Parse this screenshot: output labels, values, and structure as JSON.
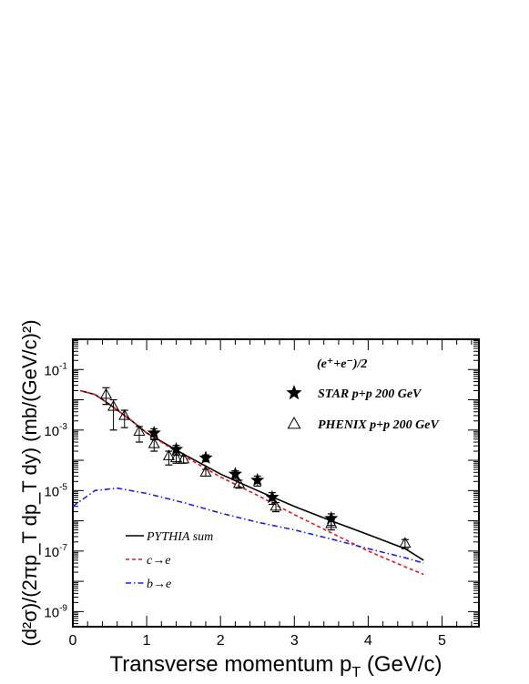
{
  "chart_data": {
    "type": "scatter",
    "xlabel": "Transverse momentum p",
    "xlabel_sub": "T",
    "xlabel_unit": " (GeV/c)",
    "ylabel": "(d²σ)/(2πp_T dp_T dy) (mb/(GeV/c)²)",
    "xlim": [
      0,
      5.5
    ],
    "ylim_log10": [
      -9.5,
      0.0
    ],
    "x_ticks": [
      "0",
      "1",
      "2",
      "3",
      "4",
      "5"
    ],
    "y_ticks": [
      {
        "base": "10",
        "exp": "-1"
      },
      {
        "base": "10",
        "exp": "-3"
      },
      {
        "base": "10",
        "exp": "-5"
      },
      {
        "base": "10",
        "exp": "-7"
      },
      {
        "base": "10",
        "exp": "-9"
      }
    ],
    "annotation": "(e⁺+e⁻)/2",
    "markers": [
      {
        "name": "STAR p+p 200 GeV",
        "symbol": "star",
        "color": "#000000",
        "x": [
          1.1,
          1.4,
          1.8,
          2.2,
          2.5,
          2.7,
          3.5
        ],
        "y": [
          0.0008,
          0.00023,
          0.00012,
          3.5e-05,
          2.2e-05,
          6e-06,
          1.2e-06
        ],
        "err_lo": [
          0.0003,
          8e-05,
          3e-05,
          1e-05,
          8e-06,
          2.5e-06,
          5e-07
        ],
        "err_hi": [
          0.0003,
          8e-05,
          3e-05,
          1e-05,
          8e-06,
          2.5e-06,
          5e-07
        ]
      },
      {
        "name": "PHENIX p+p 200 GeV",
        "symbol": "triangle",
        "color": "#000000",
        "x": [
          0.45,
          0.55,
          0.7,
          0.9,
          1.1,
          1.3,
          1.4,
          1.5,
          1.8,
          2.25,
          2.75,
          3.5,
          4.5
        ],
        "y": [
          0.015,
          0.006,
          0.003,
          0.0009,
          0.00035,
          0.00014,
          0.00012,
          0.00011,
          4e-05,
          1.7e-05,
          3e-06,
          8e-07,
          1.8e-07
        ],
        "err_lo": [
          0.008,
          0.005,
          0.0018,
          0.0005,
          0.00015,
          7e-05,
          4e-05,
          3e-05,
          1e-05,
          5e-06,
          1e-06,
          3e-07,
          6e-08
        ],
        "err_hi": [
          0.01,
          0.004,
          0.0015,
          0.0004,
          0.00013,
          6e-05,
          3e-05,
          3e-05,
          1e-05,
          5e-06,
          1e-06,
          3e-07,
          6e-08
        ]
      }
    ],
    "curves": [
      {
        "name": "PYTHIA sum",
        "color": "#000000",
        "dash": "solid",
        "x": [
          0.1,
          0.3,
          0.5,
          0.8,
          1.0,
          1.5,
          2.0,
          2.5,
          3.0,
          3.5,
          4.0,
          4.5,
          4.75
        ],
        "y": [
          0.02,
          0.015,
          0.007,
          0.002,
          0.0008,
          0.00016,
          3.5e-05,
          1e-05,
          3e-06,
          1e-06,
          3.5e-07,
          1.2e-07,
          5e-08
        ]
      },
      {
        "name": "c→e",
        "color": "#e8141c",
        "dash": "dashed",
        "x": [
          0.1,
          0.3,
          0.5,
          0.8,
          1.0,
          1.5,
          2.0,
          2.5,
          3.0,
          3.5,
          4.0,
          4.5,
          4.75
        ],
        "y": [
          0.02,
          0.015,
          0.007,
          0.002,
          0.0008,
          0.00014,
          2.8e-05,
          7e-06,
          1.6e-06,
          4e-07,
          1e-07,
          3e-08,
          1.7e-08
        ]
      },
      {
        "name": "b→e",
        "color": "#1e1ee6",
        "dash": "dashdot",
        "x": [
          0.0,
          0.3,
          0.6,
          1.0,
          1.5,
          2.0,
          2.5,
          3.0,
          3.5,
          4.0,
          4.5,
          4.75
        ],
        "y": [
          3e-06,
          1e-05,
          1.2e-05,
          8e-06,
          4e-06,
          1.8e-06,
          9e-07,
          5e-07,
          2.5e-07,
          1.2e-07,
          6e-08,
          4e-08
        ]
      }
    ],
    "legend_markers_placement": "top-right",
    "legend_curves_placement": "bottom-left",
    "grid": false
  }
}
